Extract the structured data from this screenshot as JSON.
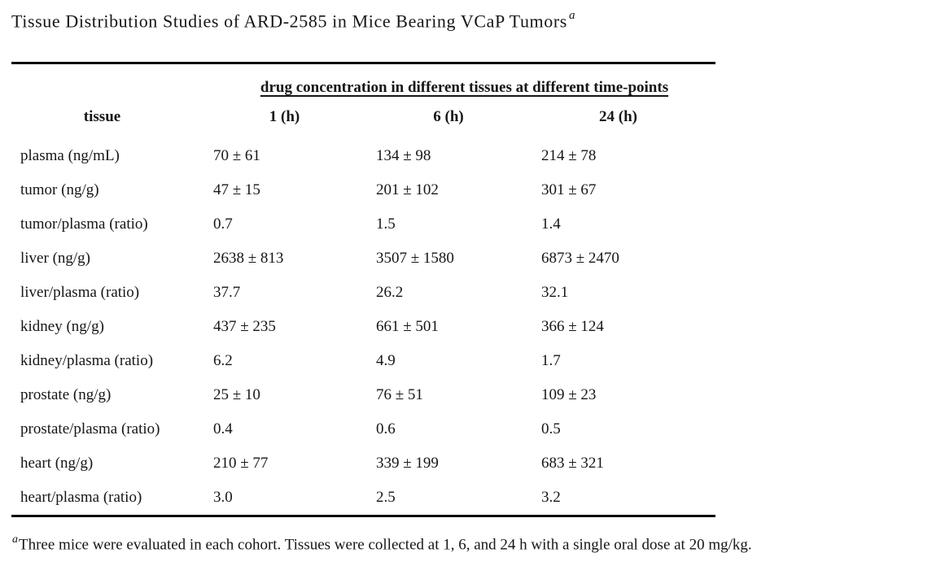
{
  "page": {
    "title": "Tissue Distribution Studies of ARD-2585 in Mice Bearing VCaP Tumors",
    "title_superscript": "a",
    "footnote_marker": "a",
    "footnote_text": "Three mice were evaluated in each cohort. Tissues were collected at 1, 6, and 24 h with a single oral dose at 20 mg/kg."
  },
  "table": {
    "span_header": "drug concentration in different tissues at different time-points",
    "columns": [
      "tissue",
      "1 (h)",
      "6 (h)",
      "24 (h)"
    ],
    "rows": [
      {
        "label": "plasma (ng/mL)",
        "values": [
          "70 ± 61",
          "134 ± 98",
          "214 ± 78"
        ]
      },
      {
        "label": "tumor (ng/g)",
        "values": [
          "47 ± 15",
          "201 ± 102",
          "301 ± 67"
        ]
      },
      {
        "label": "tumor/plasma (ratio)",
        "values": [
          "0.7",
          "1.5",
          "1.4"
        ]
      },
      {
        "label": "liver (ng/g)",
        "values": [
          "2638 ± 813",
          "3507 ± 1580",
          "6873 ± 2470"
        ]
      },
      {
        "label": "liver/plasma (ratio)",
        "values": [
          "37.7",
          "26.2",
          "32.1"
        ]
      },
      {
        "label": "kidney (ng/g)",
        "values": [
          "437 ± 235",
          "661 ± 501",
          "366 ± 124"
        ]
      },
      {
        "label": "kidney/plasma (ratio)",
        "values": [
          "6.2",
          "4.9",
          "1.7"
        ]
      },
      {
        "label": "prostate (ng/g)",
        "values": [
          "25 ± 10",
          "76 ± 51",
          "109 ± 23"
        ]
      },
      {
        "label": "prostate/plasma (ratio)",
        "values": [
          "0.4",
          "0.6",
          "0.5"
        ]
      },
      {
        "label": "heart (ng/g)",
        "values": [
          "210 ± 77",
          "339 ± 199",
          "683 ± 321"
        ]
      },
      {
        "label": "heart/plasma (ratio)",
        "values": [
          "3.0",
          "2.5",
          "3.2"
        ]
      }
    ]
  },
  "colors": {
    "text": "#161616",
    "rule": "#0a0a0a",
    "background": "#ffffff"
  }
}
